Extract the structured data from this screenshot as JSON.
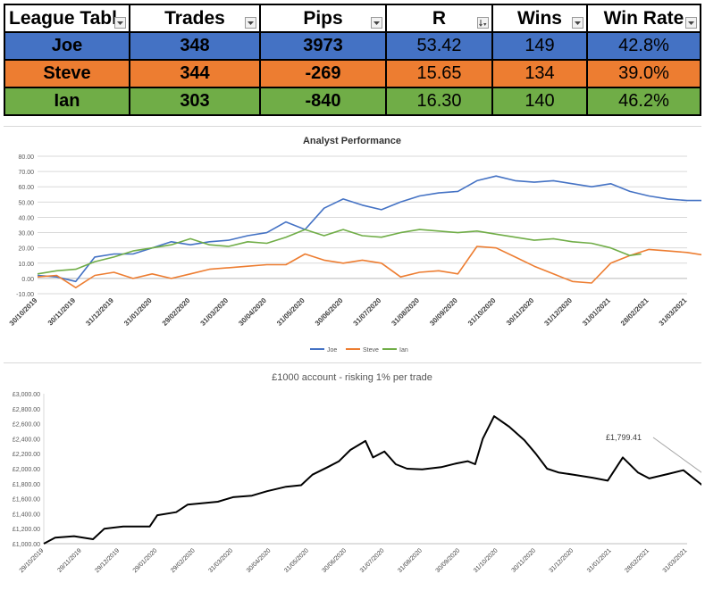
{
  "league": {
    "headers": [
      "League Tabl",
      "Trades",
      "Pips",
      "R",
      "Wins",
      "Win Rate"
    ],
    "rows": [
      {
        "name": "Joe",
        "trades": "348",
        "pips": "3973",
        "r": "53.42",
        "wins": "149",
        "win_rate": "42.8%",
        "color": "#4472c4"
      },
      {
        "name": "Steve",
        "trades": "344",
        "pips": "-269",
        "r": "15.65",
        "wins": "134",
        "win_rate": "39.0%",
        "color": "#ed7d31"
      },
      {
        "name": "Ian",
        "trades": "303",
        "pips": "-840",
        "r": "16.30",
        "wins": "140",
        "win_rate": "46.2%",
        "color": "#70ad47"
      }
    ]
  },
  "chart_data": [
    {
      "type": "line",
      "title": "Analyst Performance",
      "ylim": [
        -10,
        80
      ],
      "yticks": [
        "80.00",
        "70.00",
        "60.00",
        "50.00",
        "40.00",
        "30.00",
        "20.00",
        "10.00",
        "0.00",
        "-10.00"
      ],
      "x_labels": [
        "30/10/2019",
        "30/11/2019",
        "31/12/2019",
        "31/01/2020",
        "29/02/2020",
        "31/03/2020",
        "30/04/2020",
        "31/05/2020",
        "30/06/2020",
        "31/07/2020",
        "31/08/2020",
        "30/09/2020",
        "31/10/2020",
        "30/11/2020",
        "31/12/2020",
        "31/01/2021",
        "28/02/2021",
        "31/03/2021"
      ],
      "grid": true,
      "legend": "bottom",
      "series": [
        {
          "name": "Joe",
          "color": "#4472c4",
          "points": [
            [
              0,
              2
            ],
            [
              0.5,
              1
            ],
            [
              1,
              -2
            ],
            [
              1.5,
              14
            ],
            [
              2,
              16
            ],
            [
              2.5,
              16
            ],
            [
              3,
              20
            ],
            [
              3.5,
              24
            ],
            [
              4,
              22
            ],
            [
              4.5,
              24
            ],
            [
              5,
              25
            ],
            [
              5.5,
              28
            ],
            [
              6,
              30
            ],
            [
              6.5,
              37
            ],
            [
              7,
              32
            ],
            [
              7.5,
              46
            ],
            [
              8,
              52
            ],
            [
              8.5,
              48
            ],
            [
              9,
              45
            ],
            [
              9.5,
              50
            ],
            [
              10,
              54
            ],
            [
              10.5,
              56
            ],
            [
              11,
              57
            ],
            [
              11.5,
              64
            ],
            [
              12,
              67
            ],
            [
              12.5,
              64
            ],
            [
              13,
              63
            ],
            [
              13.5,
              64
            ],
            [
              14,
              62
            ],
            [
              14.5,
              60
            ],
            [
              15,
              62
            ],
            [
              15.5,
              57
            ],
            [
              16,
              54
            ],
            [
              16.5,
              52
            ],
            [
              17,
              51
            ],
            [
              17.5,
              51
            ],
            [
              17.8,
              53
            ]
          ]
        },
        {
          "name": "Steve",
          "color": "#ed7d31",
          "points": [
            [
              0,
              1
            ],
            [
              0.5,
              2
            ],
            [
              1,
              -6
            ],
            [
              1.5,
              2
            ],
            [
              2,
              4
            ],
            [
              2.5,
              0
            ],
            [
              3,
              3
            ],
            [
              3.5,
              0
            ],
            [
              4,
              3
            ],
            [
              4.5,
              6
            ],
            [
              5,
              7
            ],
            [
              5.5,
              8
            ],
            [
              6,
              9
            ],
            [
              6.5,
              9
            ],
            [
              7,
              16
            ],
            [
              7.5,
              12
            ],
            [
              8,
              10
            ],
            [
              8.5,
              12
            ],
            [
              9,
              10
            ],
            [
              9.5,
              1
            ],
            [
              10,
              4
            ],
            [
              10.5,
              5
            ],
            [
              11,
              3
            ],
            [
              11.5,
              21
            ],
            [
              12,
              20
            ],
            [
              12.5,
              14
            ],
            [
              13,
              8
            ],
            [
              13.5,
              3
            ],
            [
              14,
              -2
            ],
            [
              14.5,
              -3
            ],
            [
              15,
              10
            ],
            [
              15.5,
              15
            ],
            [
              16,
              19
            ],
            [
              16.5,
              18
            ],
            [
              17,
              17
            ],
            [
              17.5,
              15
            ],
            [
              17.8,
              15
            ]
          ]
        },
        {
          "name": "Ian",
          "color": "#70ad47",
          "points": [
            [
              0,
              3
            ],
            [
              0.5,
              5
            ],
            [
              1,
              6
            ],
            [
              1.5,
              11
            ],
            [
              2,
              14
            ],
            [
              2.5,
              18
            ],
            [
              3,
              20
            ],
            [
              3.5,
              22
            ],
            [
              4,
              26
            ],
            [
              4.5,
              22
            ],
            [
              5,
              21
            ],
            [
              5.5,
              24
            ],
            [
              6,
              23
            ],
            [
              6.5,
              27
            ],
            [
              7,
              32
            ],
            [
              7.5,
              28
            ],
            [
              8,
              32
            ],
            [
              8.5,
              28
            ],
            [
              9,
              27
            ],
            [
              9.5,
              30
            ],
            [
              10,
              32
            ],
            [
              10.5,
              31
            ],
            [
              11,
              30
            ],
            [
              11.5,
              31
            ],
            [
              12,
              29
            ],
            [
              12.5,
              27
            ],
            [
              13,
              25
            ],
            [
              13.5,
              26
            ],
            [
              14,
              24
            ],
            [
              14.5,
              23
            ],
            [
              15,
              20
            ],
            [
              15.5,
              15
            ],
            [
              15.8,
              16
            ]
          ]
        }
      ]
    },
    {
      "type": "line",
      "title": "£1000 account - risking 1% per trade",
      "ylim": [
        1000,
        3000
      ],
      "yticks": [
        "£3,000.00",
        "£2,800.00",
        "£2,600.00",
        "£2,400.00",
        "£2,200.00",
        "£2,000.00",
        "£1,800.00",
        "£1,600.00",
        "£1,400.00",
        "£1,200.00",
        "£1,000.00"
      ],
      "x_labels": [
        "29/10/2019",
        "29/11/2019",
        "29/12/2019",
        "29/01/2020",
        "29/02/2020",
        "31/03/2020",
        "30/04/2020",
        "31/05/2020",
        "30/06/2020",
        "31/07/2020",
        "31/08/2020",
        "30/09/2020",
        "31/10/2020",
        "30/11/2020",
        "31/12/2020",
        "31/01/2021",
        "28/02/2021",
        "31/03/2021"
      ],
      "grid": false,
      "annotation": "£1,799.41",
      "series": [
        {
          "name": "",
          "color": "#000000",
          "points": [
            [
              0,
              1000
            ],
            [
              0.3,
              1080
            ],
            [
              0.8,
              1100
            ],
            [
              1.3,
              1060
            ],
            [
              1.6,
              1200
            ],
            [
              2.1,
              1230
            ],
            [
              2.8,
              1230
            ],
            [
              3.0,
              1380
            ],
            [
              3.5,
              1420
            ],
            [
              3.8,
              1520
            ],
            [
              4.2,
              1540
            ],
            [
              4.6,
              1560
            ],
            [
              5.0,
              1620
            ],
            [
              5.5,
              1640
            ],
            [
              5.9,
              1700
            ],
            [
              6.4,
              1760
            ],
            [
              6.8,
              1780
            ],
            [
              7.1,
              1920
            ],
            [
              7.5,
              2020
            ],
            [
              7.8,
              2100
            ],
            [
              8.1,
              2250
            ],
            [
              8.5,
              2370
            ],
            [
              8.7,
              2150
            ],
            [
              9.0,
              2230
            ],
            [
              9.3,
              2060
            ],
            [
              9.6,
              2000
            ],
            [
              10.0,
              1990
            ],
            [
              10.5,
              2020
            ],
            [
              10.9,
              2070
            ],
            [
              11.2,
              2100
            ],
            [
              11.4,
              2060
            ],
            [
              11.6,
              2400
            ],
            [
              11.9,
              2700
            ],
            [
              12.3,
              2560
            ],
            [
              12.7,
              2380
            ],
            [
              13.0,
              2200
            ],
            [
              13.3,
              2000
            ],
            [
              13.6,
              1950
            ],
            [
              14.0,
              1920
            ],
            [
              14.5,
              1880
            ],
            [
              14.9,
              1840
            ],
            [
              15.3,
              2150
            ],
            [
              15.7,
              1950
            ],
            [
              16.0,
              1870
            ],
            [
              16.5,
              1930
            ],
            [
              16.9,
              1980
            ],
            [
              17.3,
              1820
            ],
            [
              17.6,
              1700
            ],
            [
              17.9,
              1760
            ]
          ]
        }
      ]
    }
  ]
}
